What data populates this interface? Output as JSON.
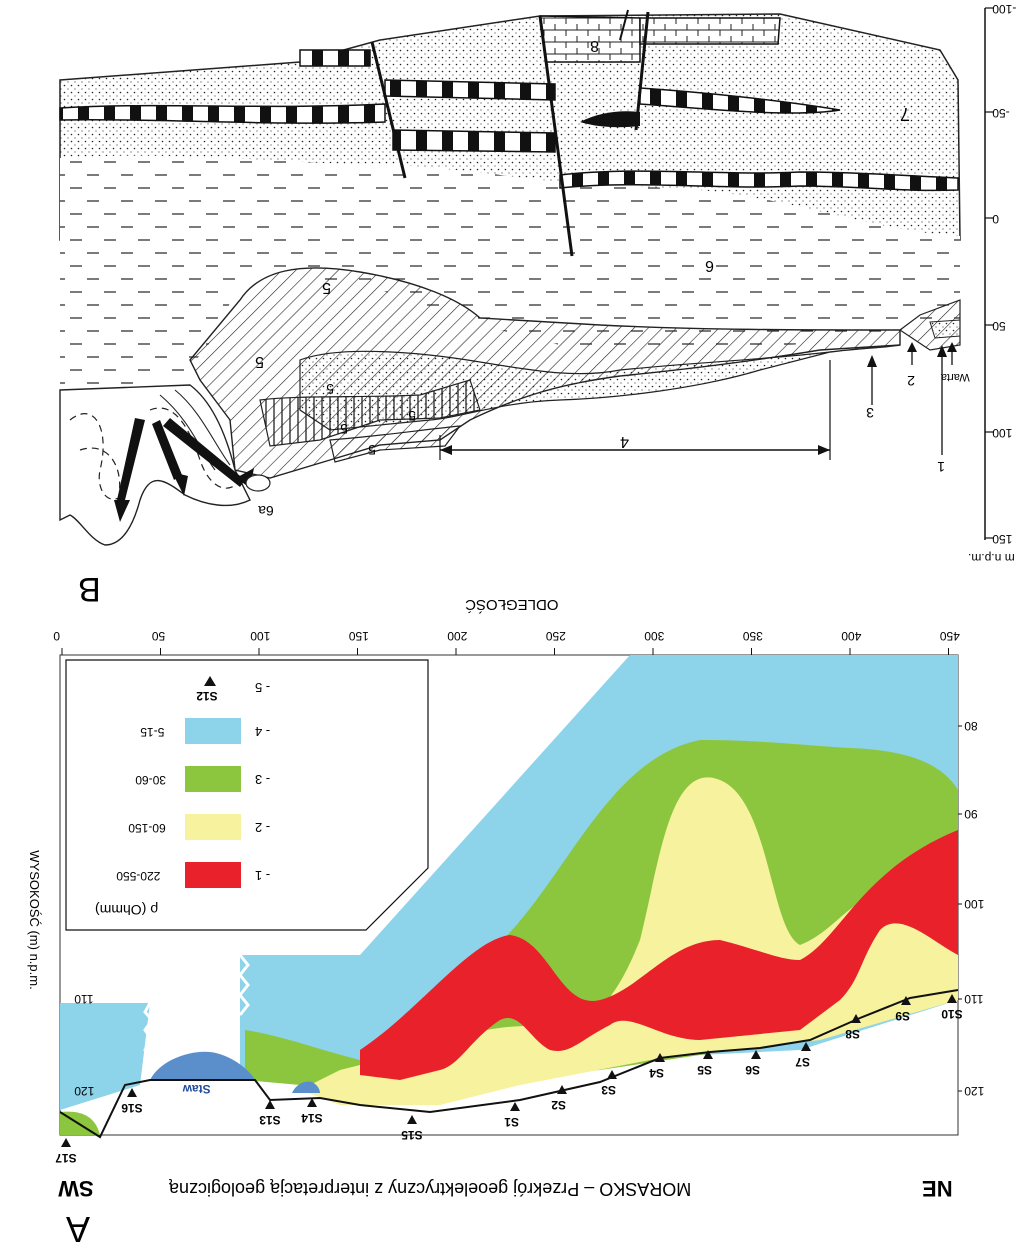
{
  "title": "MORASKO  –  Przekrój geoelektryczny z interpretacją geologiczną",
  "panel_a_letter": "A",
  "panel_b_letter": "B",
  "orientation_left": "SW",
  "orientation_right": "NE",
  "x_axis_label": "ODLEGŁOŚĆ",
  "x_ticks": [
    "0",
    "50",
    "100",
    "150",
    "200",
    "250",
    "300",
    "350",
    "400",
    "450"
  ],
  "y_axis_label": "WYSOKOŚĆ (m) n.p.m.",
  "y_ticks": [
    "80",
    "90",
    "100",
    "110",
    "120"
  ],
  "legend": {
    "header": "ρ (Ohmm)",
    "items": [
      {
        "num": "- 1",
        "range": "220-550",
        "color": "#e8212a"
      },
      {
        "num": "- 2",
        "range": "60-150",
        "color": "#f7f29e"
      },
      {
        "num": "- 3",
        "range": "30-60",
        "color": "#8cc63f"
      },
      {
        "num": "- 4",
        "range": "5-15",
        "color": "#8dd3ea"
      },
      {
        "num": "- 5",
        "symbol": "S12"
      }
    ]
  },
  "pond_label": "Staw",
  "pond_color": "#5b8fcc",
  "sounding_points": [
    "S17",
    "S16",
    "S13",
    "S14",
    "S15",
    "S1",
    "S2",
    "S3",
    "S4",
    "S5",
    "S6",
    "S7",
    "S8",
    "S9",
    "S10"
  ],
  "b_labels": {
    "unit7": "7",
    "unit8": "8",
    "unit6": "6",
    "unit5": "5",
    "unit6a": "6a",
    "span4": "4",
    "arrow3": "3",
    "arrow2": "2",
    "arrow1": "1",
    "river": "Warta"
  },
  "b_scale": {
    "ticks": [
      "-100",
      "-50",
      "0",
      "50",
      "100",
      "150"
    ],
    "unit": "m n.p.m."
  }
}
